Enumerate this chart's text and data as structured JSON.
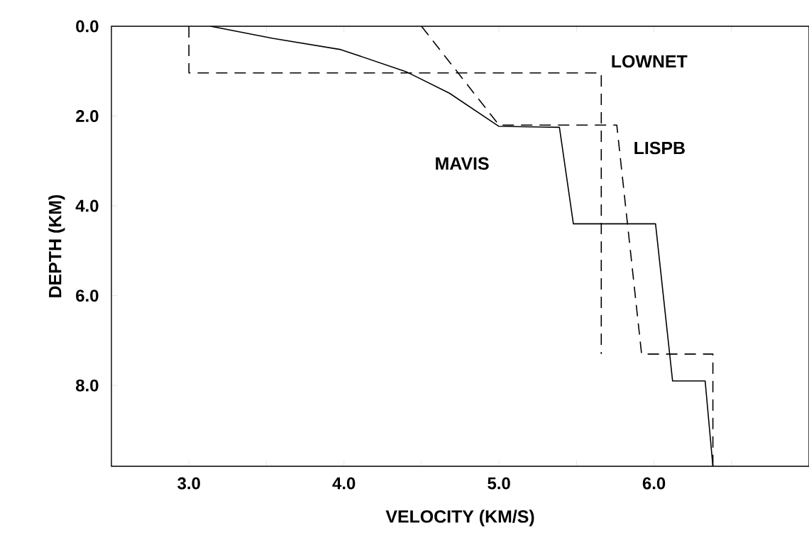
{
  "chart_data": {
    "type": "line",
    "xlabel": "VELOCITY (KM/S)",
    "ylabel": "DEPTH (KM)",
    "xlim": [
      2.5,
      7.0
    ],
    "ylim": [
      9.8,
      0.0
    ],
    "xticks": [
      {
        "value": 2.5,
        "label": null
      },
      {
        "value": 3,
        "label": "3.0"
      },
      {
        "value": 3.5,
        "label": null
      },
      {
        "value": 4,
        "label": "4.0"
      },
      {
        "value": 4.5,
        "label": null
      },
      {
        "value": 5,
        "label": "5.0"
      },
      {
        "value": 5.5,
        "label": null
      },
      {
        "value": 6,
        "label": "6.0"
      },
      {
        "value": 6.5,
        "label": null
      }
    ],
    "yticks": [
      {
        "value": 0,
        "label": "0.0"
      },
      {
        "value": 2,
        "label": "2.0"
      },
      {
        "value": 4,
        "label": "4.0"
      },
      {
        "value": 6,
        "label": "6.0"
      },
      {
        "value": 8,
        "label": "8.0"
      }
    ],
    "grid": false,
    "legend": false,
    "marker": "none",
    "series": [
      {
        "name": "MAVIS",
        "color": "#000000",
        "line_style": "solid",
        "x": [
          3.14,
          3.54,
          3.98,
          4.4,
          4.68,
          5.0,
          5.39,
          5.48,
          6.01,
          6.12,
          6.33,
          6.38
        ],
        "values": [
          0.0,
          0.27,
          0.52,
          1.01,
          1.49,
          2.23,
          2.25,
          4.4,
          4.4,
          7.9,
          7.9,
          9.8
        ]
      },
      {
        "name": "LOWNET",
        "color": "#000000",
        "line_style": "dashed",
        "x": [
          3.0,
          3.0,
          5.66,
          5.66
        ],
        "values": [
          0.0,
          1.04,
          1.04,
          7.3
        ]
      },
      {
        "name": "LISPB",
        "color": "#000000",
        "line_style": "dashed",
        "x": [
          4.5,
          5.0,
          5.76,
          5.92,
          6.38,
          6.38
        ],
        "values": [
          0.0,
          2.2,
          2.2,
          7.3,
          7.3,
          9.8
        ]
      }
    ]
  }
}
